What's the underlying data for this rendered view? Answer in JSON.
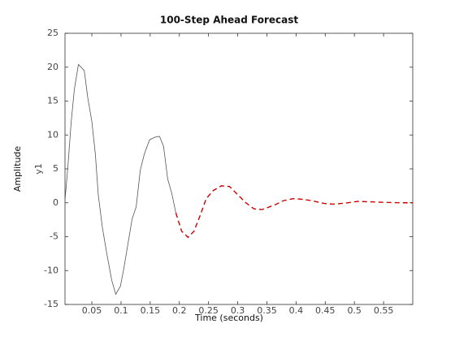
{
  "chart_data": {
    "type": "line",
    "title": "100-Step Ahead Forecast",
    "xlabel": "Time (seconds)",
    "ylabel": "Amplitude",
    "channel_label": "y1",
    "xlim": [
      0.004,
      0.6
    ],
    "ylim": [
      -15,
      25
    ],
    "xticks": [
      0.05,
      0.1,
      0.15,
      0.2,
      0.25,
      0.3,
      0.35,
      0.4,
      0.45,
      0.5,
      0.55
    ],
    "yticks": [
      -15,
      -10,
      -5,
      0,
      5,
      10,
      15,
      20,
      25
    ],
    "series": [
      {
        "color": "#555555",
        "style": "solid",
        "x": [
          0.004,
          0.009,
          0.0147,
          0.02,
          0.027,
          0.037,
          0.043,
          0.05,
          0.056,
          0.061,
          0.068,
          0.075,
          0.084,
          0.091,
          0.099,
          0.105,
          0.112,
          0.119,
          0.126,
          0.133,
          0.14,
          0.149,
          0.159,
          0.166,
          0.173,
          0.18,
          0.187,
          0.194
        ],
        "values": [
          0.4,
          5.4,
          12,
          16.7,
          20.4,
          19.5,
          15.5,
          12,
          7.2,
          1.2,
          -3.6,
          -7.2,
          -11.4,
          -13.5,
          -12.3,
          -9.6,
          -6,
          -2.4,
          -0.6,
          4.8,
          7.2,
          9.3,
          9.7,
          9.8,
          8.3,
          3.5,
          1.4,
          -1.5
        ]
      },
      {
        "color": "#cc0000",
        "style": "dashed",
        "x": [
          0.194,
          0.204,
          0.215,
          0.225,
          0.236,
          0.246,
          0.258,
          0.272,
          0.286,
          0.3,
          0.314,
          0.328,
          0.342,
          0.364,
          0.378,
          0.395,
          0.413,
          0.427,
          0.448,
          0.463,
          0.484,
          0.505,
          0.526,
          0.554,
          0.582,
          0.6
        ],
        "values": [
          -1.5,
          -4.2,
          -5.1,
          -4.2,
          -1.8,
          0.6,
          1.8,
          2.5,
          2.4,
          1.2,
          0,
          -0.9,
          -1,
          -0.3,
          0.3,
          0.6,
          0.5,
          0.3,
          -0.1,
          -0.2,
          -0.05,
          0.2,
          0.15,
          0.05,
          0,
          0
        ]
      }
    ]
  }
}
